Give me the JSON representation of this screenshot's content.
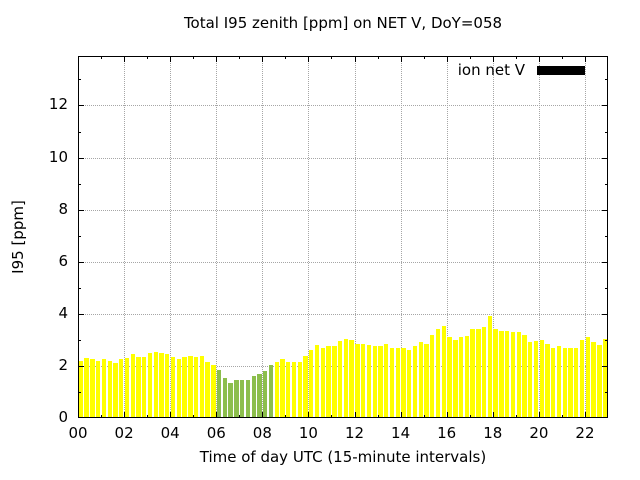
{
  "title": "Total I95 zenith [ppm] on NET V, DoY=058",
  "legend": {
    "label": "ion net V",
    "swatch_color": "#000000"
  },
  "chart_data": {
    "type": "bar",
    "title": "Total I95 zenith [ppm] on NET V, DoY=058",
    "xlabel": "Time of day UTC (15-minute intervals)",
    "ylabel": "I95 [ppm]",
    "interval_minutes": 15,
    "x_range_hours": [
      0,
      23
    ],
    "ylim": [
      0,
      13.9
    ],
    "y_ticks": [
      "0",
      "2",
      "4",
      "6",
      "8",
      "10",
      "12"
    ],
    "y_tick_values": [
      0,
      2,
      4,
      6,
      8,
      10,
      12
    ],
    "x_ticks": [
      "00",
      "02",
      "04",
      "06",
      "08",
      "10",
      "12",
      "14",
      "16",
      "18",
      "20",
      "22"
    ],
    "x_tick_hours": [
      0,
      2,
      4,
      6,
      8,
      10,
      12,
      14,
      16,
      18,
      20,
      22
    ],
    "grid": true,
    "legend_position": "top-right",
    "colors": {
      "yellow": "#ffff00",
      "green": "#8cbe4c",
      "frame": "#000000",
      "grid": "#a6a6a6"
    },
    "points": [
      {
        "t": "00:00",
        "v": 2.2,
        "c": "yellow"
      },
      {
        "t": "00:15",
        "v": 2.3,
        "c": "yellow"
      },
      {
        "t": "00:30",
        "v": 2.25,
        "c": "yellow"
      },
      {
        "t": "00:45",
        "v": 2.2,
        "c": "yellow"
      },
      {
        "t": "01:00",
        "v": 2.25,
        "c": "yellow"
      },
      {
        "t": "01:15",
        "v": 2.2,
        "c": "yellow"
      },
      {
        "t": "01:30",
        "v": 2.1,
        "c": "yellow"
      },
      {
        "t": "01:45",
        "v": 2.25,
        "c": "yellow"
      },
      {
        "t": "02:00",
        "v": 2.3,
        "c": "yellow"
      },
      {
        "t": "02:15",
        "v": 2.45,
        "c": "yellow"
      },
      {
        "t": "02:30",
        "v": 2.35,
        "c": "yellow"
      },
      {
        "t": "02:45",
        "v": 2.35,
        "c": "yellow"
      },
      {
        "t": "03:00",
        "v": 2.5,
        "c": "yellow"
      },
      {
        "t": "03:15",
        "v": 2.55,
        "c": "yellow"
      },
      {
        "t": "03:30",
        "v": 2.5,
        "c": "yellow"
      },
      {
        "t": "03:45",
        "v": 2.45,
        "c": "yellow"
      },
      {
        "t": "04:00",
        "v": 2.35,
        "c": "yellow"
      },
      {
        "t": "04:15",
        "v": 2.25,
        "c": "yellow"
      },
      {
        "t": "04:30",
        "v": 2.35,
        "c": "yellow"
      },
      {
        "t": "04:45",
        "v": 2.4,
        "c": "yellow"
      },
      {
        "t": "05:00",
        "v": 2.35,
        "c": "yellow"
      },
      {
        "t": "05:15",
        "v": 2.4,
        "c": "yellow"
      },
      {
        "t": "05:30",
        "v": 2.15,
        "c": "yellow"
      },
      {
        "t": "05:45",
        "v": 2.05,
        "c": "yellow"
      },
      {
        "t": "06:00",
        "v": 1.85,
        "c": "green"
      },
      {
        "t": "06:15",
        "v": 1.55,
        "c": "green"
      },
      {
        "t": "06:30",
        "v": 1.35,
        "c": "green"
      },
      {
        "t": "06:45",
        "v": 1.45,
        "c": "green"
      },
      {
        "t": "07:00",
        "v": 1.45,
        "c": "green"
      },
      {
        "t": "07:15",
        "v": 1.45,
        "c": "green"
      },
      {
        "t": "07:30",
        "v": 1.6,
        "c": "green"
      },
      {
        "t": "07:45",
        "v": 1.7,
        "c": "green"
      },
      {
        "t": "08:00",
        "v": 1.8,
        "c": "green"
      },
      {
        "t": "08:15",
        "v": 2.05,
        "c": "green"
      },
      {
        "t": "08:30",
        "v": 2.15,
        "c": "yellow"
      },
      {
        "t": "08:45",
        "v": 2.25,
        "c": "yellow"
      },
      {
        "t": "09:00",
        "v": 2.15,
        "c": "yellow"
      },
      {
        "t": "09:15",
        "v": 2.15,
        "c": "yellow"
      },
      {
        "t": "09:30",
        "v": 2.15,
        "c": "yellow"
      },
      {
        "t": "09:45",
        "v": 2.4,
        "c": "yellow"
      },
      {
        "t": "10:00",
        "v": 2.6,
        "c": "yellow"
      },
      {
        "t": "10:15",
        "v": 2.8,
        "c": "yellow"
      },
      {
        "t": "10:30",
        "v": 2.7,
        "c": "yellow"
      },
      {
        "t": "10:45",
        "v": 2.75,
        "c": "yellow"
      },
      {
        "t": "11:00",
        "v": 2.75,
        "c": "yellow"
      },
      {
        "t": "11:15",
        "v": 2.95,
        "c": "yellow"
      },
      {
        "t": "11:30",
        "v": 3.05,
        "c": "yellow"
      },
      {
        "t": "11:45",
        "v": 3.0,
        "c": "yellow"
      },
      {
        "t": "12:00",
        "v": 2.85,
        "c": "yellow"
      },
      {
        "t": "12:15",
        "v": 2.85,
        "c": "yellow"
      },
      {
        "t": "12:30",
        "v": 2.8,
        "c": "yellow"
      },
      {
        "t": "12:45",
        "v": 2.75,
        "c": "yellow"
      },
      {
        "t": "13:00",
        "v": 2.75,
        "c": "yellow"
      },
      {
        "t": "13:15",
        "v": 2.85,
        "c": "yellow"
      },
      {
        "t": "13:30",
        "v": 2.7,
        "c": "yellow"
      },
      {
        "t": "13:45",
        "v": 2.7,
        "c": "yellow"
      },
      {
        "t": "14:00",
        "v": 2.7,
        "c": "yellow"
      },
      {
        "t": "14:15",
        "v": 2.6,
        "c": "yellow"
      },
      {
        "t": "14:30",
        "v": 2.75,
        "c": "yellow"
      },
      {
        "t": "14:45",
        "v": 2.9,
        "c": "yellow"
      },
      {
        "t": "15:00",
        "v": 2.85,
        "c": "yellow"
      },
      {
        "t": "15:15",
        "v": 3.2,
        "c": "yellow"
      },
      {
        "t": "15:30",
        "v": 3.4,
        "c": "yellow"
      },
      {
        "t": "15:45",
        "v": 3.55,
        "c": "yellow"
      },
      {
        "t": "16:00",
        "v": 3.1,
        "c": "yellow"
      },
      {
        "t": "16:15",
        "v": 3.0,
        "c": "yellow"
      },
      {
        "t": "16:30",
        "v": 3.1,
        "c": "yellow"
      },
      {
        "t": "16:45",
        "v": 3.15,
        "c": "yellow"
      },
      {
        "t": "17:00",
        "v": 3.4,
        "c": "yellow"
      },
      {
        "t": "17:15",
        "v": 3.4,
        "c": "yellow"
      },
      {
        "t": "17:30",
        "v": 3.5,
        "c": "yellow"
      },
      {
        "t": "17:45",
        "v": 3.9,
        "c": "yellow"
      },
      {
        "t": "18:00",
        "v": 3.4,
        "c": "yellow"
      },
      {
        "t": "18:15",
        "v": 3.35,
        "c": "yellow"
      },
      {
        "t": "18:30",
        "v": 3.35,
        "c": "yellow"
      },
      {
        "t": "18:45",
        "v": 3.3,
        "c": "yellow"
      },
      {
        "t": "19:00",
        "v": 3.3,
        "c": "yellow"
      },
      {
        "t": "19:15",
        "v": 3.2,
        "c": "yellow"
      },
      {
        "t": "19:30",
        "v": 2.9,
        "c": "yellow"
      },
      {
        "t": "19:45",
        "v": 2.95,
        "c": "yellow"
      },
      {
        "t": "20:00",
        "v": 3.0,
        "c": "yellow"
      },
      {
        "t": "20:15",
        "v": 2.85,
        "c": "yellow"
      },
      {
        "t": "20:30",
        "v": 2.7,
        "c": "yellow"
      },
      {
        "t": "20:45",
        "v": 2.75,
        "c": "yellow"
      },
      {
        "t": "21:00",
        "v": 2.7,
        "c": "yellow"
      },
      {
        "t": "21:15",
        "v": 2.7,
        "c": "yellow"
      },
      {
        "t": "21:30",
        "v": 2.7,
        "c": "yellow"
      },
      {
        "t": "21:45",
        "v": 3.0,
        "c": "yellow"
      },
      {
        "t": "22:00",
        "v": 3.1,
        "c": "yellow"
      },
      {
        "t": "22:15",
        "v": 2.9,
        "c": "yellow"
      },
      {
        "t": "22:30",
        "v": 2.8,
        "c": "yellow"
      },
      {
        "t": "22:45",
        "v": 3.05,
        "c": "yellow"
      }
    ]
  }
}
